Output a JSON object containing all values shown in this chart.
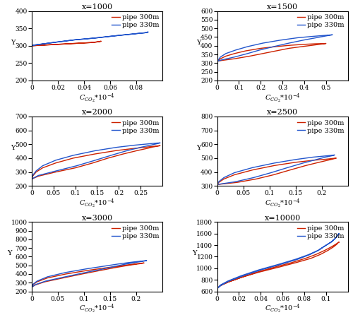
{
  "panels": [
    {
      "title": "x=1000",
      "xlim": [
        0,
        0.1
      ],
      "xticks": [
        0,
        0.02,
        0.04,
        0.06,
        0.08
      ],
      "xticklabels": [
        "0",
        "0.02",
        "0.04",
        "0.06",
        "0.08"
      ],
      "ylim": [
        200,
        400
      ],
      "yticks": [
        200,
        250,
        300,
        350,
        400
      ],
      "red_lower_y": [
        300,
        300,
        301,
        302,
        303,
        304,
        305,
        306,
        307,
        308,
        309,
        310,
        311,
        312,
        313
      ],
      "red_lower_x": [
        0.0,
        0.001,
        0.005,
        0.01,
        0.015,
        0.02,
        0.025,
        0.03,
        0.035,
        0.04,
        0.045,
        0.048,
        0.05,
        0.052,
        0.053
      ],
      "red_upper_y": [
        313,
        312,
        311,
        310,
        309,
        308,
        307,
        306,
        305,
        304,
        303,
        302,
        301,
        300
      ],
      "red_upper_x": [
        0.053,
        0.052,
        0.05,
        0.048,
        0.045,
        0.04,
        0.035,
        0.03,
        0.025,
        0.02,
        0.015,
        0.01,
        0.005,
        0.0
      ],
      "blue_lower_y": [
        300,
        302,
        305,
        310,
        317,
        322,
        327,
        331,
        334,
        336,
        337,
        338,
        339,
        340
      ],
      "blue_lower_x": [
        0.0,
        0.002,
        0.008,
        0.018,
        0.033,
        0.048,
        0.06,
        0.07,
        0.078,
        0.083,
        0.086,
        0.088,
        0.089,
        0.089
      ],
      "blue_upper_y": [
        340,
        339,
        338,
        337,
        336,
        334,
        331,
        327,
        322,
        317,
        310,
        305,
        302,
        300
      ],
      "blue_upper_x": [
        0.089,
        0.089,
        0.088,
        0.086,
        0.083,
        0.078,
        0.07,
        0.06,
        0.048,
        0.033,
        0.018,
        0.008,
        0.002,
        0.0
      ]
    },
    {
      "title": "x=1500",
      "xlim": [
        0,
        0.6
      ],
      "xticks": [
        0,
        0.1,
        0.2,
        0.3,
        0.4,
        0.5
      ],
      "xticklabels": [
        "0",
        "0.1",
        "0.2",
        "0.3",
        "0.4",
        "0.5"
      ],
      "ylim": [
        200,
        600
      ],
      "yticks": [
        200,
        250,
        300,
        350,
        400,
        450,
        500,
        550,
        600
      ],
      "red_lower_y": [
        310,
        315,
        325,
        340,
        355,
        370,
        385,
        395,
        403,
        408,
        411,
        413
      ],
      "red_lower_x": [
        0.0,
        0.005,
        0.015,
        0.04,
        0.08,
        0.13,
        0.2,
        0.27,
        0.34,
        0.4,
        0.45,
        0.5
      ],
      "red_upper_y": [
        413,
        411,
        408,
        403,
        395,
        385,
        370,
        355,
        340,
        325,
        315,
        310
      ],
      "red_upper_x": [
        0.5,
        0.49,
        0.47,
        0.44,
        0.39,
        0.33,
        0.27,
        0.21,
        0.15,
        0.08,
        0.02,
        0.0
      ],
      "blue_lower_y": [
        310,
        318,
        335,
        355,
        375,
        395,
        415,
        432,
        446,
        454,
        460,
        463
      ],
      "blue_lower_x": [
        0.0,
        0.005,
        0.015,
        0.04,
        0.085,
        0.14,
        0.21,
        0.29,
        0.37,
        0.44,
        0.5,
        0.53
      ],
      "blue_upper_y": [
        463,
        460,
        454,
        446,
        432,
        415,
        395,
        375,
        355,
        335,
        318,
        310
      ],
      "blue_upper_x": [
        0.53,
        0.515,
        0.49,
        0.455,
        0.395,
        0.33,
        0.26,
        0.195,
        0.14,
        0.08,
        0.02,
        0.0
      ]
    },
    {
      "title": "x=2000",
      "xlim": [
        0,
        0.3
      ],
      "xticks": [
        0,
        0.05,
        0.1,
        0.15,
        0.2,
        0.25
      ],
      "xticklabels": [
        "0",
        "0.05",
        "0.1",
        "0.15",
        "0.2",
        "0.25"
      ],
      "ylim": [
        200,
        700
      ],
      "yticks": [
        200,
        300,
        400,
        500,
        600,
        700
      ],
      "red_lower_y": [
        250,
        270,
        300,
        330,
        365,
        400,
        430,
        455,
        470,
        480,
        487,
        490
      ],
      "red_lower_x": [
        0.0,
        0.002,
        0.01,
        0.025,
        0.055,
        0.095,
        0.145,
        0.195,
        0.235,
        0.265,
        0.285,
        0.295
      ],
      "red_upper_y": [
        490,
        487,
        480,
        470,
        455,
        430,
        400,
        365,
        330,
        300,
        270,
        250
      ],
      "red_upper_x": [
        0.295,
        0.29,
        0.278,
        0.265,
        0.243,
        0.21,
        0.175,
        0.14,
        0.1,
        0.055,
        0.015,
        0.0
      ],
      "blue_lower_y": [
        250,
        275,
        308,
        345,
        385,
        420,
        453,
        478,
        493,
        502,
        508,
        510
      ],
      "blue_lower_x": [
        0.0,
        0.002,
        0.01,
        0.025,
        0.055,
        0.095,
        0.145,
        0.195,
        0.235,
        0.265,
        0.285,
        0.295
      ],
      "blue_upper_y": [
        510,
        508,
        502,
        493,
        478,
        453,
        420,
        385,
        345,
        308,
        275,
        250
      ],
      "blue_upper_x": [
        0.295,
        0.293,
        0.285,
        0.272,
        0.25,
        0.218,
        0.182,
        0.146,
        0.103,
        0.056,
        0.015,
        0.0
      ]
    },
    {
      "title": "x=2500",
      "xlim": [
        0,
        0.25
      ],
      "xticks": [
        0,
        0.05,
        0.1,
        0.15,
        0.2
      ],
      "xticklabels": [
        "0",
        "0.05",
        "0.1",
        "0.15",
        "0.2"
      ],
      "ylim": [
        300,
        800
      ],
      "yticks": [
        300,
        400,
        500,
        600,
        700,
        800
      ],
      "red_lower_y": [
        310,
        325,
        350,
        380,
        415,
        447,
        470,
        485,
        492,
        497,
        500
      ],
      "red_lower_x": [
        0.0,
        0.003,
        0.013,
        0.033,
        0.068,
        0.11,
        0.15,
        0.185,
        0.208,
        0.22,
        0.228
      ],
      "red_upper_y": [
        500,
        497,
        492,
        485,
        470,
        447,
        415,
        380,
        350,
        325,
        310
      ],
      "red_upper_x": [
        0.228,
        0.225,
        0.22,
        0.212,
        0.195,
        0.17,
        0.14,
        0.108,
        0.075,
        0.038,
        0.0
      ],
      "blue_lower_y": [
        310,
        330,
        360,
        395,
        432,
        465,
        490,
        507,
        515,
        520,
        523
      ],
      "blue_lower_x": [
        0.0,
        0.003,
        0.013,
        0.033,
        0.068,
        0.11,
        0.15,
        0.183,
        0.205,
        0.218,
        0.225
      ],
      "blue_upper_y": [
        523,
        520,
        515,
        507,
        490,
        465,
        432,
        395,
        360,
        330,
        310
      ],
      "blue_upper_x": [
        0.225,
        0.223,
        0.217,
        0.207,
        0.19,
        0.165,
        0.135,
        0.103,
        0.07,
        0.035,
        0.0
      ]
    },
    {
      "title": "x=3000",
      "xlim": [
        0,
        0.25
      ],
      "xticks": [
        0,
        0.05,
        0.1,
        0.15,
        0.2
      ],
      "xticklabels": [
        "0",
        "0.05",
        "0.1",
        "0.15",
        "0.2"
      ],
      "ylim": [
        200,
        1000
      ],
      "yticks": [
        200,
        300,
        400,
        500,
        600,
        700,
        800,
        900,
        1000
      ],
      "red_lower_y": [
        250,
        275,
        310,
        355,
        400,
        440,
        470,
        490,
        505,
        513,
        520,
        525,
        528
      ],
      "red_lower_x": [
        0.0,
        0.002,
        0.01,
        0.03,
        0.065,
        0.105,
        0.14,
        0.165,
        0.183,
        0.194,
        0.203,
        0.21,
        0.215
      ],
      "red_upper_y": [
        528,
        525,
        520,
        513,
        505,
        490,
        470,
        440,
        400,
        355,
        310,
        275,
        250
      ],
      "red_upper_x": [
        0.215,
        0.213,
        0.208,
        0.2,
        0.19,
        0.175,
        0.156,
        0.13,
        0.096,
        0.06,
        0.025,
        0.007,
        0.0
      ],
      "blue_lower_y": [
        250,
        280,
        318,
        368,
        418,
        460,
        492,
        515,
        530,
        540,
        547,
        552,
        555
      ],
      "blue_lower_x": [
        0.0,
        0.002,
        0.01,
        0.03,
        0.065,
        0.105,
        0.14,
        0.165,
        0.183,
        0.196,
        0.207,
        0.215,
        0.22
      ],
      "blue_upper_y": [
        555,
        552,
        547,
        540,
        530,
        515,
        492,
        460,
        418,
        368,
        318,
        280,
        250
      ],
      "blue_upper_x": [
        0.22,
        0.218,
        0.213,
        0.205,
        0.195,
        0.18,
        0.162,
        0.138,
        0.103,
        0.064,
        0.026,
        0.008,
        0.0
      ]
    },
    {
      "title": "x=10000",
      "xlim": [
        0,
        0.12
      ],
      "xticks": [
        0,
        0.02,
        0.04,
        0.06,
        0.08,
        0.1
      ],
      "xticklabels": [
        "0",
        "0.02",
        "0.04",
        "0.06",
        "0.08",
        "0.1"
      ],
      "ylim": [
        600,
        1800
      ],
      "yticks": [
        600,
        800,
        1000,
        1200,
        1400,
        1600,
        1800
      ],
      "red_lower_y": [
        650,
        700,
        760,
        840,
        930,
        1020,
        1100,
        1170,
        1240,
        1310,
        1370,
        1415,
        1440,
        1450
      ],
      "red_lower_x": [
        0.0,
        0.003,
        0.01,
        0.022,
        0.038,
        0.057,
        0.073,
        0.086,
        0.095,
        0.102,
        0.107,
        0.11,
        0.111,
        0.112
      ],
      "red_upper_y": [
        1450,
        1440,
        1415,
        1370,
        1310,
        1240,
        1170,
        1100,
        1020,
        930,
        840,
        760,
        700,
        650
      ],
      "red_upper_x": [
        0.112,
        0.111,
        0.109,
        0.105,
        0.099,
        0.091,
        0.081,
        0.069,
        0.053,
        0.036,
        0.022,
        0.01,
        0.003,
        0.0
      ],
      "blue_lower_y": [
        650,
        710,
        780,
        870,
        970,
        1065,
        1155,
        1235,
        1310,
        1385,
        1455,
        1525,
        1575,
        1600
      ],
      "blue_lower_x": [
        0.0,
        0.003,
        0.01,
        0.022,
        0.038,
        0.056,
        0.072,
        0.084,
        0.093,
        0.099,
        0.105,
        0.109,
        0.111,
        0.112
      ],
      "blue_upper_y": [
        1600,
        1575,
        1525,
        1455,
        1385,
        1310,
        1235,
        1155,
        1065,
        970,
        870,
        780,
        710,
        650
      ],
      "blue_upper_x": [
        0.112,
        0.111,
        0.109,
        0.105,
        0.099,
        0.093,
        0.085,
        0.074,
        0.058,
        0.04,
        0.024,
        0.011,
        0.004,
        0.0
      ]
    }
  ],
  "red_color": "#cc2200",
  "blue_color": "#2255cc",
  "legend_labels": [
    "pipe 300m",
    "pipe 330m"
  ],
  "fontsize_title": 8,
  "fontsize_label": 7,
  "fontsize_tick": 6.5,
  "fontsize_legend": 7,
  "linewidth": 1.0
}
